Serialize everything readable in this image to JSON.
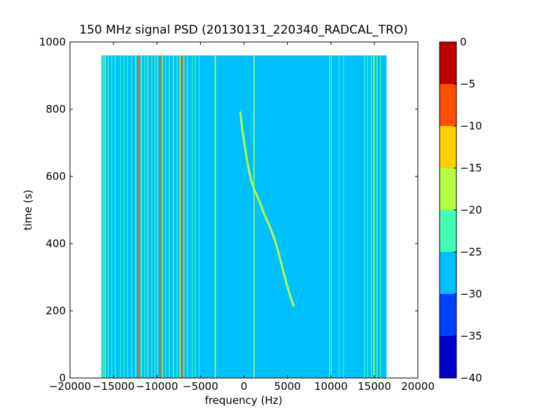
{
  "chart_data": {
    "type": "heatmap",
    "title": "150 MHz signal PSD (20130131_220340_RADCAL_TRO)",
    "xlabel": "frequency (Hz)",
    "ylabel": "time (s)",
    "xlim": [
      -20000,
      20000
    ],
    "ylim": [
      0,
      1000
    ],
    "xticks": [
      "−20000",
      "−15000",
      "−10000",
      "−5000",
      "0",
      "5000",
      "10000",
      "15000",
      "20000"
    ],
    "xtick_values": [
      -20000,
      -15000,
      -10000,
      -5000,
      0,
      5000,
      10000,
      15000,
      20000
    ],
    "yticks": [
      "0",
      "200",
      "400",
      "600",
      "800",
      "1000"
    ],
    "ytick_values": [
      0,
      200,
      400,
      600,
      800,
      1000
    ],
    "data_extent": {
      "x": [
        -16400,
        16400
      ],
      "y": [
        0,
        960
      ]
    },
    "background_level": -28,
    "colorbar": {
      "levels": [
        -40,
        -35,
        -30,
        -25,
        -20,
        -15,
        -10,
        -5,
        0
      ],
      "tick_labels": [
        "−40",
        "−35",
        "−30",
        "−25",
        "−20",
        "−15",
        "−10",
        "−5",
        "0"
      ],
      "colors": [
        "#0000c8",
        "#0040ff",
        "#00c0ff",
        "#40ffb0",
        "#b0ff40",
        "#ffd000",
        "#ff5000",
        "#c00000"
      ]
    },
    "line_features": [
      {
        "x": -16200,
        "level": -23,
        "width": 150
      },
      {
        "x": -15950,
        "level": -18,
        "width": 120
      },
      {
        "x": -15600,
        "level": -23,
        "width": 80
      },
      {
        "x": -15200,
        "level": -23,
        "width": 60
      },
      {
        "x": -14800,
        "level": -23,
        "width": 60
      },
      {
        "x": -14200,
        "level": -23,
        "width": 70
      },
      {
        "x": -13800,
        "level": -23,
        "width": 60
      },
      {
        "x": -13400,
        "level": -23,
        "width": 80
      },
      {
        "x": -12900,
        "level": -23,
        "width": 90
      },
      {
        "x": -12450,
        "level": -18,
        "width": 90
      },
      {
        "x": -12150,
        "level": -8,
        "width": 120
      },
      {
        "x": -11800,
        "level": -18,
        "width": 100
      },
      {
        "x": -11400,
        "level": -23,
        "width": 80
      },
      {
        "x": -11050,
        "level": -18,
        "width": 90
      },
      {
        "x": -10600,
        "level": -23,
        "width": 60
      },
      {
        "x": -10250,
        "level": -23,
        "width": 60
      },
      {
        "x": -9950,
        "level": -13,
        "width": 100
      },
      {
        "x": -9650,
        "level": -8,
        "width": 90
      },
      {
        "x": -9350,
        "level": -18,
        "width": 90
      },
      {
        "x": -9000,
        "level": -23,
        "width": 70
      },
      {
        "x": -8600,
        "level": -23,
        "width": 70
      },
      {
        "x": -8100,
        "level": -18,
        "width": 90
      },
      {
        "x": -7700,
        "level": -23,
        "width": 80
      },
      {
        "x": -7350,
        "level": -13,
        "width": 140
      },
      {
        "x": -7150,
        "level": -8,
        "width": 120
      },
      {
        "x": -6900,
        "level": -13,
        "width": 100
      },
      {
        "x": -6500,
        "level": -23,
        "width": 70
      },
      {
        "x": -5950,
        "level": -23,
        "width": 60
      },
      {
        "x": -5600,
        "level": -23,
        "width": 60
      },
      {
        "x": -5150,
        "level": -23,
        "width": 60
      },
      {
        "x": -3300,
        "level": -18,
        "width": 140
      },
      {
        "x": 1150,
        "level": -18,
        "width": 120
      },
      {
        "x": 9850,
        "level": -23,
        "width": 120
      },
      {
        "x": 10050,
        "level": -23,
        "width": 80
      },
      {
        "x": 10950,
        "level": -23,
        "width": 80
      },
      {
        "x": 11450,
        "level": -23,
        "width": 70
      },
      {
        "x": 13850,
        "level": -23,
        "width": 90
      },
      {
        "x": 14200,
        "level": -23,
        "width": 80
      },
      {
        "x": 14650,
        "level": -23,
        "width": 120
      },
      {
        "x": 14950,
        "level": -18,
        "width": 140
      },
      {
        "x": 15300,
        "level": -23,
        "width": 120
      },
      {
        "x": 15700,
        "level": -23,
        "width": 100
      }
    ],
    "chirp": {
      "level": -18,
      "points": [
        [
          -400,
          790
        ],
        [
          -200,
          740
        ],
        [
          100,
          690
        ],
        [
          400,
          640
        ],
        [
          800,
          590
        ],
        [
          1200,
          560
        ],
        [
          1700,
          530
        ],
        [
          2300,
          490
        ],
        [
          2900,
          455
        ],
        [
          3500,
          415
        ],
        [
          4000,
          370
        ],
        [
          4500,
          320
        ],
        [
          4900,
          280
        ],
        [
          5250,
          250
        ],
        [
          5700,
          215
        ]
      ]
    }
  }
}
